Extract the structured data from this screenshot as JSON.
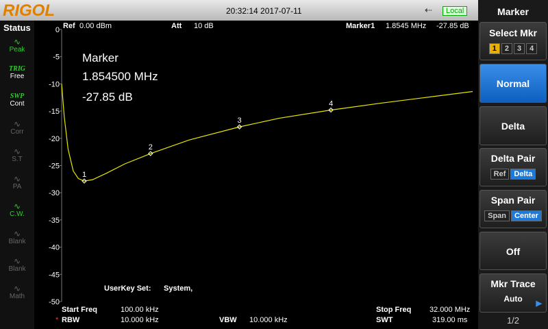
{
  "header": {
    "brand": "RIGOL",
    "datetime": "20:32:14 2017-07-11",
    "local": "Local"
  },
  "status": {
    "title": "Status",
    "items": [
      {
        "lines": [
          "Peak"
        ]
      },
      {
        "lines": [
          "TRIG",
          "Free"
        ]
      },
      {
        "lines": [
          "SWP",
          "Cont"
        ]
      },
      {
        "lines": [
          "Corr"
        ]
      },
      {
        "lines": [
          "S.T"
        ]
      },
      {
        "lines": [
          "PA"
        ]
      },
      {
        "lines": [
          "C.W."
        ]
      },
      {
        "lines": [
          "Blank"
        ]
      },
      {
        "lines": [
          "Blank"
        ]
      },
      {
        "lines": [
          "Math"
        ]
      }
    ]
  },
  "info": {
    "ref_label": "Ref",
    "ref_value": "0.00 dBm",
    "att_label": "Att",
    "att_value": "10 dB",
    "marker_label": "Marker1",
    "marker_freq": "1.8545 MHz",
    "marker_amp": "-27.85 dB"
  },
  "marker_box": {
    "title": "Marker",
    "freq": "1.854500 MHz",
    "amp": "-27.85 dB"
  },
  "userkey": {
    "label": "UserKey Set:",
    "value": "System,"
  },
  "footer": {
    "start_freq_label": "Start Freq",
    "start_freq": "100.00 kHz",
    "stop_freq_label": "Stop Freq",
    "stop_freq": "32.000 MHz",
    "asterisk": "*",
    "rbw_label": "RBW",
    "rbw": "10.000 kHz",
    "vbw_label": "VBW",
    "vbw": "10.000 kHz",
    "swt_label": "SWT",
    "swt": "319.00 ms"
  },
  "menu": {
    "title": "Marker",
    "select_mkr": {
      "label": "Select Mkr",
      "options": [
        "1",
        "2",
        "3",
        "4"
      ]
    },
    "normal": "Normal",
    "delta": "Delta",
    "delta_pair": {
      "label": "Delta Pair",
      "options": [
        "Ref",
        "Delta"
      ]
    },
    "span_pair": {
      "label": "Span Pair",
      "options": [
        "Span",
        "Center"
      ]
    },
    "off": "Off",
    "mkr_trace": {
      "label": "Mkr Trace",
      "value": "Auto"
    },
    "page": "1/2"
  },
  "chart_data": {
    "type": "line",
    "color": "#e8e800",
    "x": [
      0.1,
      0.3,
      0.6,
      1.0,
      1.4,
      1.85,
      2.5,
      3.5,
      5,
      7,
      10,
      13.9,
      17,
      21,
      25,
      28,
      32
    ],
    "values": [
      -10,
      -16,
      -22,
      -26,
      -27.4,
      -27.85,
      -27.6,
      -26.5,
      -24.7,
      -22.8,
      -20.3,
      -17.9,
      -16.3,
      -14.8,
      -13.5,
      -12.6,
      -11.4
    ],
    "xlim": [
      0.1,
      32
    ],
    "ylim": [
      -50,
      0
    ],
    "yticks": [
      0,
      -5,
      -10,
      -15,
      -20,
      -25,
      -30,
      -35,
      -40,
      -45,
      -50
    ],
    "markers": [
      {
        "label": "1",
        "x": 1.8545,
        "y": -27.85
      },
      {
        "label": "2",
        "x": 7,
        "y": -22.8
      },
      {
        "label": "3",
        "x": 13.9,
        "y": -17.9
      },
      {
        "label": "4",
        "x": 21,
        "y": -14.8
      }
    ]
  }
}
